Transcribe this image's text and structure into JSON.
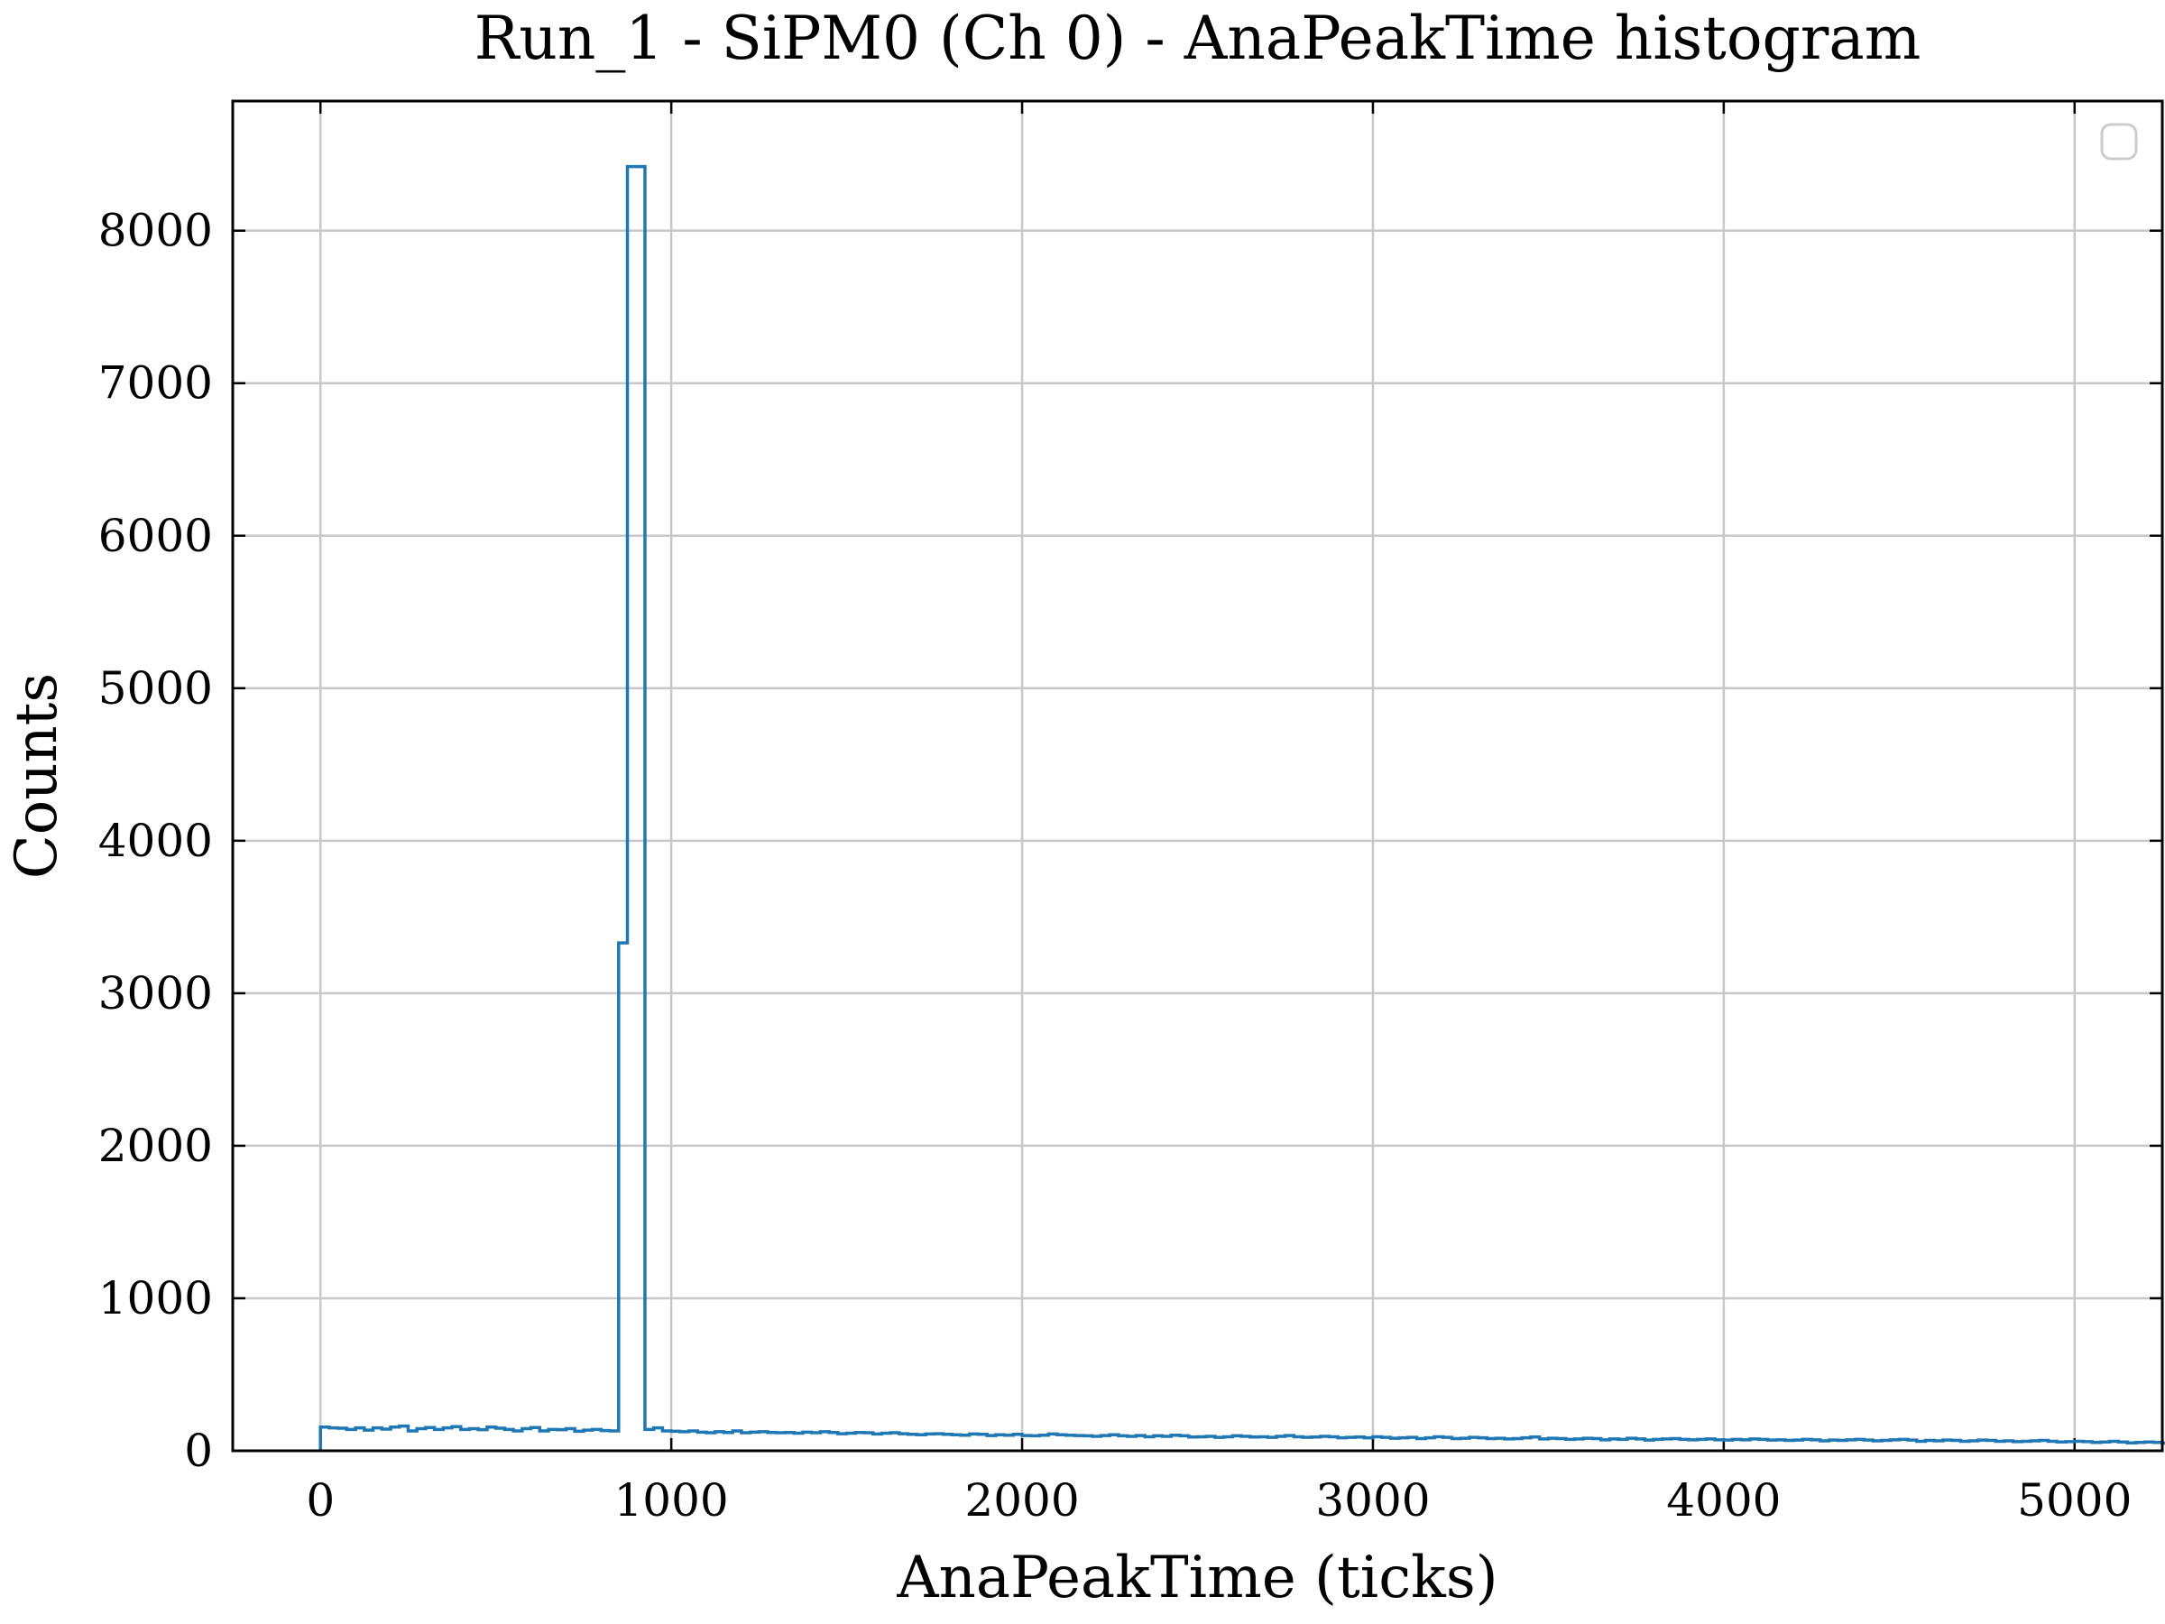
{
  "chart_data": {
    "type": "histogram",
    "title": "Run_1 - SiPM0 (Ch 0) - AnaPeakTime histogram",
    "xlabel": "AnaPeakTime (ticks)",
    "ylabel": "Counts",
    "xlim": [
      -250,
      5250
    ],
    "ylim": [
      0,
      8850
    ],
    "xticks": [
      0,
      1000,
      2000,
      3000,
      4000,
      5000
    ],
    "yticks": [
      0,
      1000,
      2000,
      3000,
      4000,
      5000,
      6000,
      7000,
      8000
    ],
    "grid": true,
    "legend": {
      "location": "top-right",
      "entries": []
    },
    "series_color": "#1f77b4",
    "bin_width": 25,
    "bin_start": 0,
    "counts": [
      155,
      150,
      148,
      140,
      150,
      135,
      150,
      142,
      155,
      162,
      130,
      145,
      152,
      140,
      150,
      158,
      140,
      145,
      138,
      155,
      148,
      140,
      130,
      145,
      152,
      130,
      140,
      138,
      145,
      128,
      135,
      140,
      132,
      130,
      3330,
      8420,
      8420,
      140,
      150,
      130,
      128,
      125,
      130,
      122,
      118,
      125,
      120,
      130,
      118,
      122,
      125,
      120,
      118,
      120,
      115,
      122,
      118,
      125,
      120,
      112,
      115,
      120,
      118,
      110,
      115,
      118,
      112,
      108,
      105,
      110,
      112,
      108,
      105,
      102,
      110,
      108,
      100,
      105,
      102,
      108,
      100,
      98,
      102,
      110,
      105,
      102,
      100,
      98,
      95,
      100,
      105,
      98,
      95,
      100,
      92,
      98,
      95,
      102,
      98,
      90,
      92,
      95,
      88,
      92,
      98,
      95,
      90,
      92,
      88,
      95,
      100,
      92,
      88,
      90,
      95,
      92,
      85,
      88,
      90,
      85,
      92,
      88,
      82,
      85,
      88,
      80,
      85,
      92,
      88,
      80,
      82,
      88,
      85,
      80,
      82,
      78,
      80,
      85,
      90,
      78,
      82,
      80,
      75,
      78,
      82,
      80,
      72,
      78,
      75,
      82,
      78,
      70,
      75,
      78,
      80,
      75,
      72,
      75,
      78,
      72,
      70,
      75,
      72,
      78,
      75,
      70,
      72,
      68,
      70,
      75,
      72,
      65,
      70,
      68,
      72,
      75,
      70,
      65,
      68,
      72,
      75,
      70,
      62,
      68,
      65,
      70,
      68,
      62,
      65,
      70,
      68,
      62,
      65,
      60,
      62,
      65,
      68,
      62,
      58,
      60,
      62,
      60,
      55,
      58,
      62,
      58,
      52,
      55,
      58,
      55,
      50,
      52,
      55,
      50,
      48,
      52,
      50
    ]
  }
}
